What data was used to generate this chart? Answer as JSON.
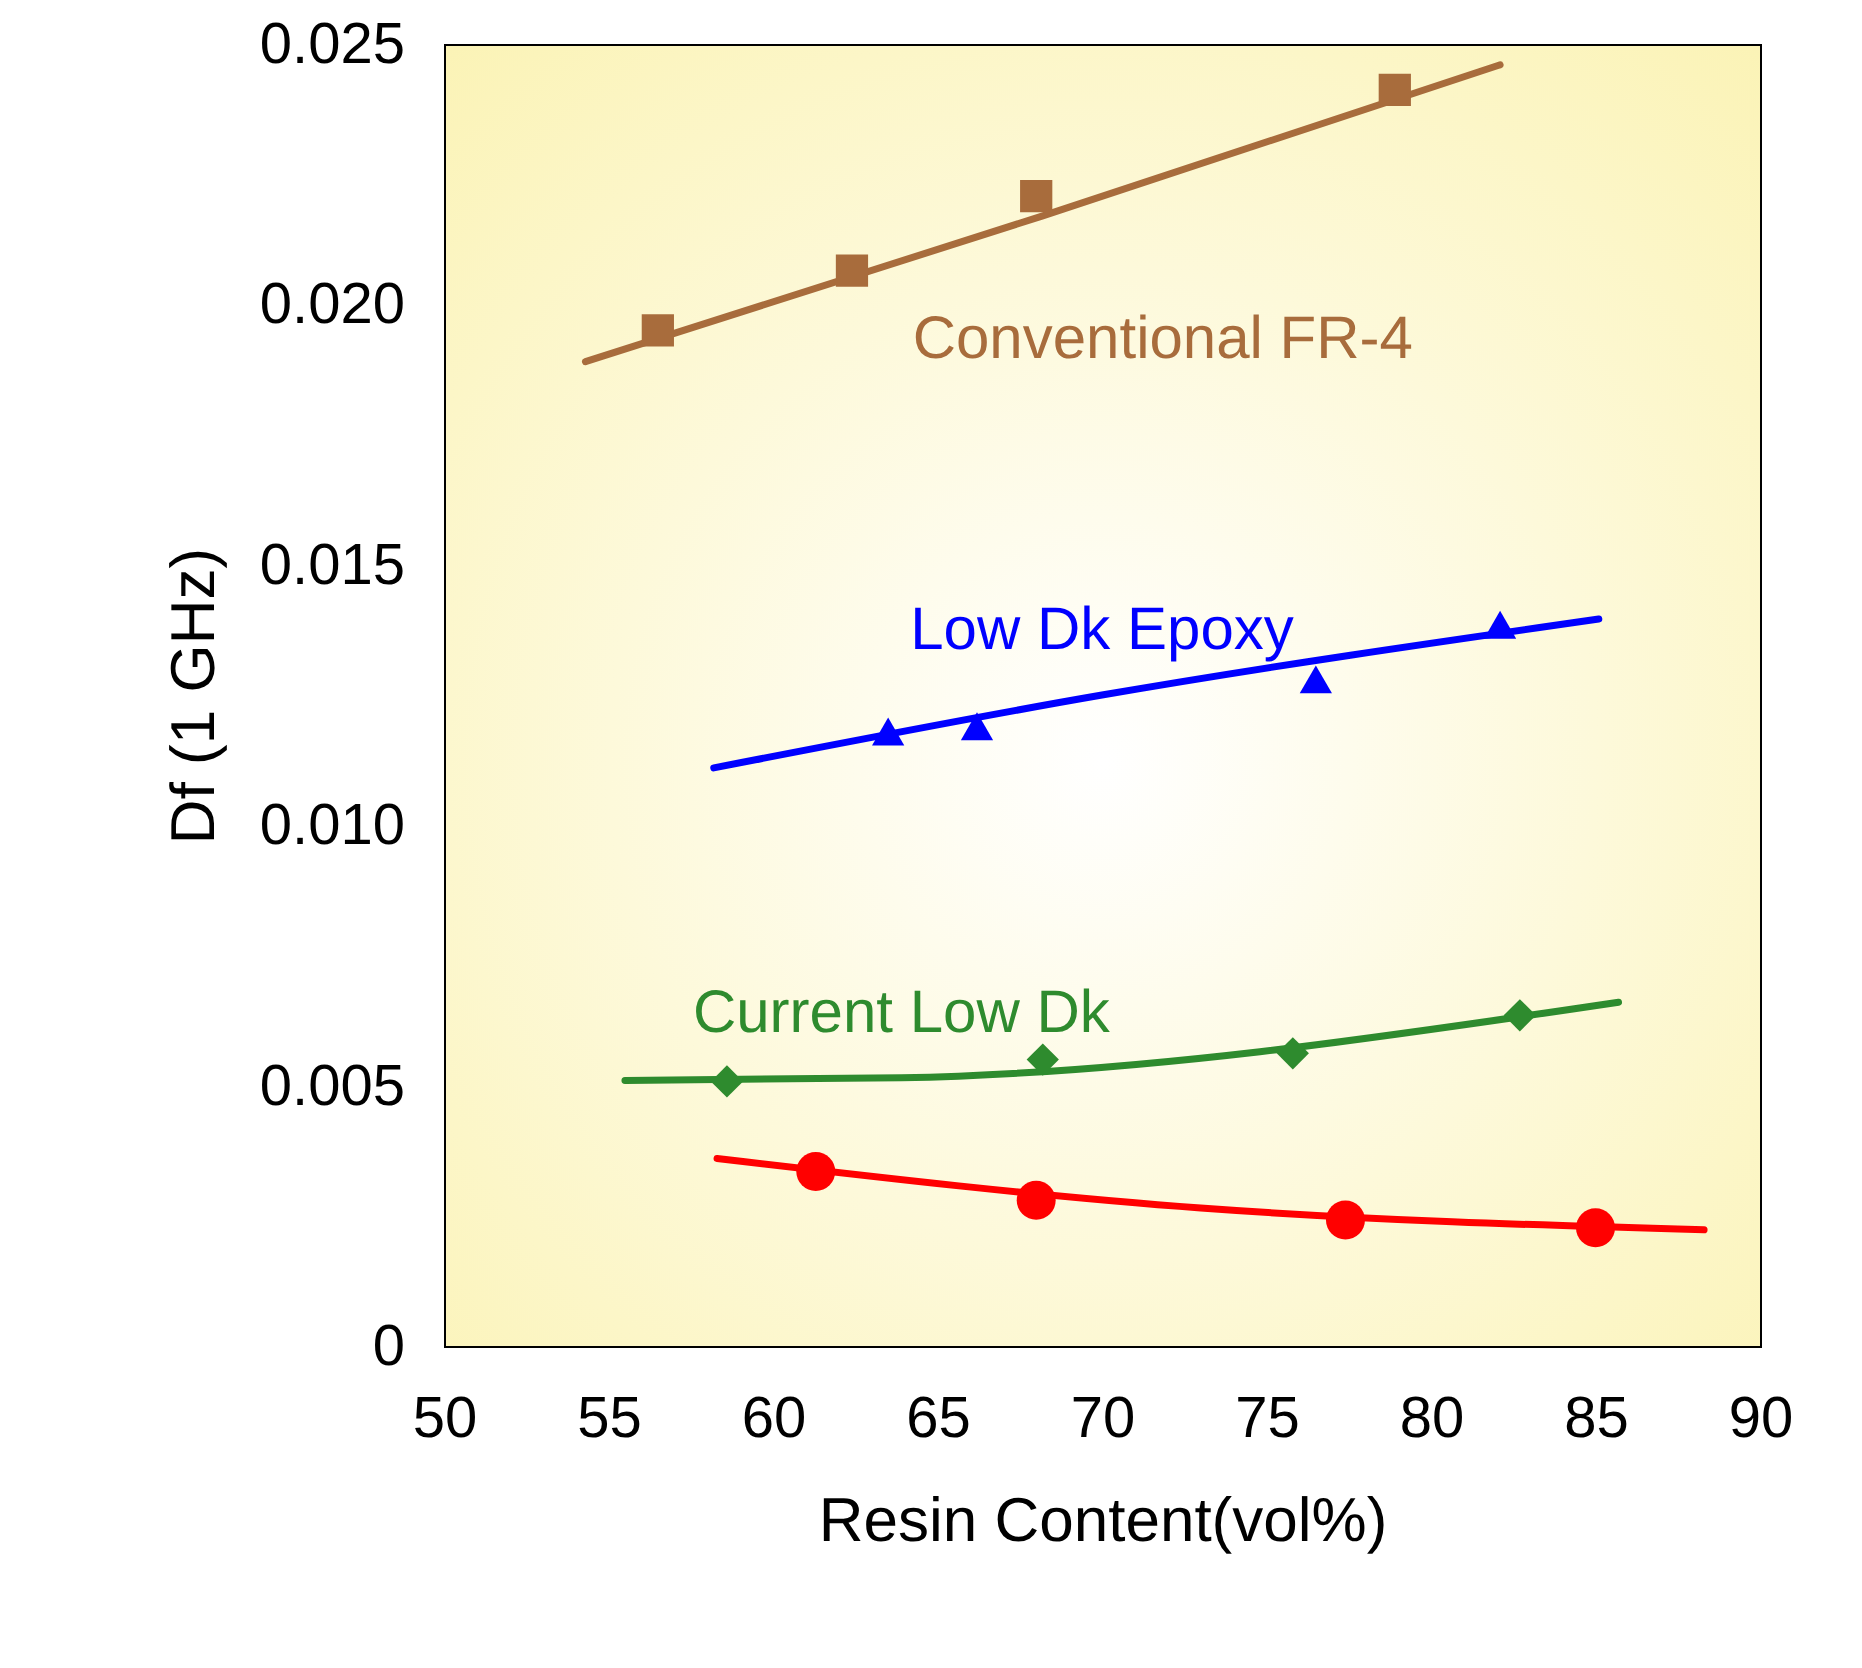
{
  "chart_data": {
    "type": "line",
    "xlabel": "Resin Content(vol%)",
    "ylabel": "Df (1 GHz)",
    "xlim": [
      50,
      90
    ],
    "xticks": [
      50,
      55,
      60,
      65,
      70,
      75,
      80,
      85,
      90
    ],
    "ylim": [
      0,
      0.025
    ],
    "yticks": [
      0,
      0.005,
      {
        "value": 0.01,
        "label": "0.010"
      },
      0.015,
      {
        "value": 0.02,
        "label": "0.020"
      },
      0.025
    ],
    "grid": false,
    "series": [
      {
        "name": "Conventional FR-4",
        "marker": "none",
        "color": "#a86c3c",
        "x": [
          54.3,
          68.2,
          82.1
        ],
        "values": [
          0.0189,
          0.0217,
          0.0246
        ]
      },
      {
        "type": "scatter",
        "marker": "square",
        "color": "#a86c3c",
        "x": [
          56.5,
          62.4,
          68.0,
          78.9
        ],
        "values": [
          0.0195,
          0.02065,
          0.02208,
          0.02412
        ]
      },
      {
        "name": "Low Dk Epoxy",
        "marker": "none",
        "color": "#0000ff",
        "x": [
          58.2,
          70.0,
          85.1
        ],
        "values": [
          0.0111,
          0.0125,
          0.01396
        ]
      },
      {
        "type": "scatter",
        "marker": "triangle",
        "color": "#0000ff",
        "x": [
          63.5,
          66.2,
          76.5,
          82.1
        ],
        "values": [
          0.0118,
          0.0119,
          0.0128,
          0.01385
        ]
      },
      {
        "name": "Current Low Dk",
        "marker": "none",
        "color": "#2e8b2e",
        "x": [
          55.5,
          63.9,
          85.7
        ],
        "values": [
          0.0051,
          0.00515,
          0.0066
        ]
      },
      {
        "type": "scatter",
        "marker": "diamond",
        "color": "#2e8b2e",
        "x": [
          58.6,
          68.2,
          75.8,
          82.7
        ],
        "values": [
          0.00508,
          0.0055,
          0.00562,
          0.00635
        ]
      },
      {
        "marker": "none",
        "color": "#ff0000",
        "x": [
          58.3,
          73.0,
          88.3
        ],
        "values": [
          0.0036,
          0.00265,
          0.00223
        ]
      },
      {
        "type": "scatter",
        "marker": "circle",
        "color": "#ff0000",
        "x": [
          61.3,
          68.0,
          77.4,
          85.0
        ],
        "values": [
          0.00335,
          0.0028,
          0.00242,
          0.00227
        ]
      }
    ]
  }
}
